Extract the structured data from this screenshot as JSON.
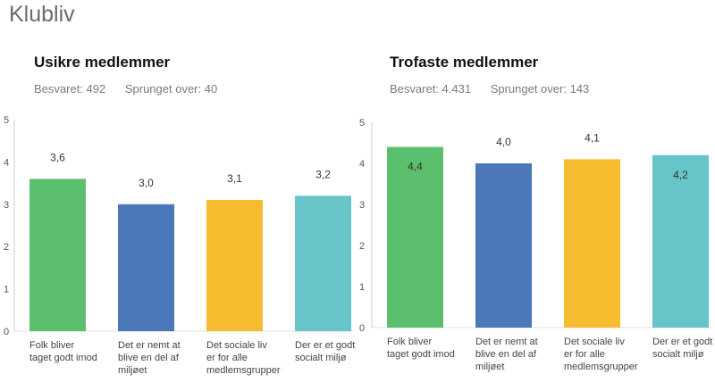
{
  "page": {
    "title": "Klubliv"
  },
  "chart_data": [
    {
      "type": "bar",
      "title": "Usikre medlemmer",
      "stats": {
        "answered": "Besvaret: 492",
        "skipped": "Sprunget over: 40"
      },
      "categories": [
        [
          "Folk bliver",
          "taget godt imod"
        ],
        [
          "Det er nemt at",
          "blive en del af",
          "miljøet"
        ],
        [
          "Det sociale liv",
          "er for alle",
          "medlemsgrupper"
        ],
        [
          "Der er et godt",
          "socialt miljø"
        ]
      ],
      "values": [
        3.6,
        3.0,
        3.1,
        3.2
      ],
      "value_labels": [
        "3,6",
        "3,0",
        "3,1",
        "3,2"
      ],
      "label_position": [
        "above",
        "above",
        "above",
        "above"
      ],
      "colors": [
        "#5cbf6e",
        "#4a78b8",
        "#f6bb2e",
        "#67c5c9"
      ],
      "ylim": [
        0,
        5
      ],
      "yticks": [
        "0",
        "1",
        "2",
        "3",
        "4",
        "5"
      ],
      "xlabel": "",
      "ylabel": ""
    },
    {
      "type": "bar",
      "title": "Trofaste medlemmer",
      "stats": {
        "answered": "Besvaret: 4.431",
        "skipped": "Sprunget over: 143"
      },
      "categories": [
        [
          "Folk bliver",
          "taget godt imod"
        ],
        [
          "Det er nemt at",
          "blive en del af",
          "miljøet"
        ],
        [
          "Det sociale liv",
          "er for alle",
          "medlemsgrupper"
        ],
        [
          "Der er et godt",
          "socialt miljø"
        ]
      ],
      "values": [
        4.4,
        4.0,
        4.1,
        4.2
      ],
      "value_labels": [
        "4,4",
        "4,0",
        "4,1",
        "4,2"
      ],
      "label_position": [
        "inside",
        "above",
        "above",
        "inside"
      ],
      "colors": [
        "#5cbf6e",
        "#4a78b8",
        "#f6bb2e",
        "#67c5c9"
      ],
      "ylim": [
        0,
        5
      ],
      "yticks": [
        "0",
        "1",
        "2",
        "3",
        "4",
        "5"
      ],
      "xlabel": "",
      "ylabel": ""
    }
  ]
}
